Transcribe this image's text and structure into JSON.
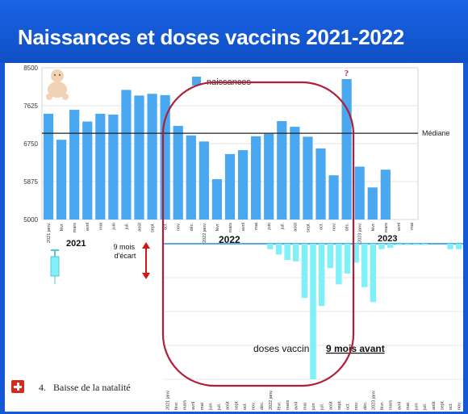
{
  "header": {
    "title": "Naissances et doses vaccins 2021-2022"
  },
  "footer": {
    "number": "4.",
    "text": "Baisse de la natalité"
  },
  "colors": {
    "banner": "#1458d6",
    "births_bar": "#4aa8f0",
    "doses_bar": "#7ff0f7",
    "highlight_ellipse": "#b01e3a",
    "arrow": "#d01818"
  },
  "icons": [
    "baby-icon",
    "syringe-icon",
    "swiss-flag-icon",
    "double-arrow-icon"
  ],
  "chart_data": [
    {
      "type": "bar",
      "name": "births",
      "legend": "naissances",
      "y_ticks": [
        "8500",
        "7625",
        "6750",
        "5875",
        "5000"
      ],
      "ylim": [
        5000,
        8500
      ],
      "median": 6990,
      "median_label": "Médiane",
      "categories": [
        "2021 janv.",
        "févr.",
        "mars",
        "avril",
        "mai",
        "juin",
        "juil.",
        "août",
        "sept.",
        "oct.",
        "nov.",
        "déc.",
        "2022 janv.",
        "févr.",
        "mars",
        "avril",
        "mai",
        "juin",
        "juil.",
        "août",
        "sept.",
        "oct.",
        "nov.",
        "déc.",
        "2023 janv.",
        "févr.",
        "mars",
        "avril",
        "mai"
      ],
      "values": [
        7440,
        6840,
        7530,
        7260,
        7440,
        7420,
        7990,
        7860,
        7900,
        7870,
        7160,
        6940,
        6800,
        5930,
        6510,
        6600,
        6920,
        6980,
        7270,
        7140,
        6910,
        6640,
        6020,
        8240,
        6220,
        5740,
        6150,
        null,
        null
      ],
      "question_mark": "?",
      "year_labels": [
        "2021",
        "2022",
        "2023"
      ]
    },
    {
      "type": "bar",
      "name": "vaccine doses",
      "legend": "doses vaccin",
      "legend_emphasis": "9 mois avant",
      "direction": "downward",
      "categories": [
        "2021 janv.",
        "févr.",
        "mars",
        "avril",
        "mai",
        "juin",
        "juil.",
        "août",
        "sept.",
        "oct.",
        "nov.",
        "déc.",
        "2022 janv.",
        "févr.",
        "mars",
        "avril",
        "mai",
        "juin",
        "juil.",
        "août",
        "sept.",
        "oct.",
        "nov.",
        "déc.",
        "2023 janv.",
        "févr.",
        "mars",
        "avril",
        "mai",
        "juin",
        "juil.",
        "août",
        "sept.",
        "oct.",
        "nov."
      ],
      "values": [
        0,
        0,
        0,
        0,
        0,
        0,
        0,
        0,
        0,
        0,
        0,
        0,
        0.04,
        0.08,
        0.12,
        0.13,
        0.4,
        1.0,
        0.46,
        0.18,
        0.3,
        0.22,
        0.14,
        0.32,
        0.43,
        0.04,
        0.03,
        0.01,
        0.01,
        0.01,
        0.01,
        0,
        0,
        0.04,
        0.04
      ],
      "offset_label": "9 mois d'écart"
    }
  ]
}
